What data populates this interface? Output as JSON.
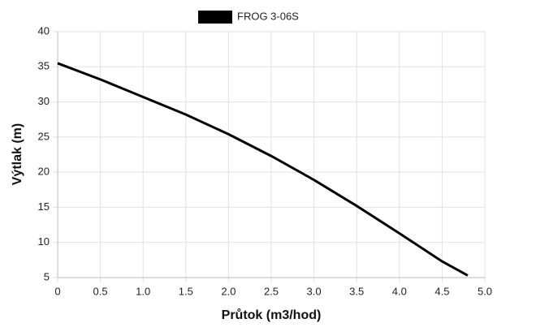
{
  "chart_data": {
    "type": "line",
    "x_label": "Průtok (m3/hod)",
    "y_label": "Výtlak (m)",
    "series": [
      {
        "name": "FROG 3-06S",
        "color": "#000000",
        "x": [
          0,
          0.5,
          1.0,
          1.5,
          2.0,
          2.5,
          3.0,
          3.5,
          4.0,
          4.5,
          4.8
        ],
        "values": [
          35.5,
          33.2,
          30.7,
          28.2,
          25.4,
          22.3,
          18.9,
          15.2,
          11.3,
          7.3,
          5.3
        ]
      }
    ],
    "xlim": [
      0,
      5
    ],
    "xticks": [
      0,
      0.5,
      {
        "value": 1,
        "label": "1.0"
      },
      1.5,
      {
        "value": 2,
        "label": "2.0"
      },
      2.5,
      {
        "value": 3,
        "label": "3.0"
      },
      3.5,
      {
        "value": 4,
        "label": "4.0"
      },
      4.5,
      {
        "value": 5,
        "label": "5.0"
      }
    ],
    "ylim": [
      5,
      40
    ],
    "yticks": [
      5,
      10,
      15,
      20,
      25,
      30,
      35,
      40
    ],
    "grid": true,
    "legend": "top"
  }
}
